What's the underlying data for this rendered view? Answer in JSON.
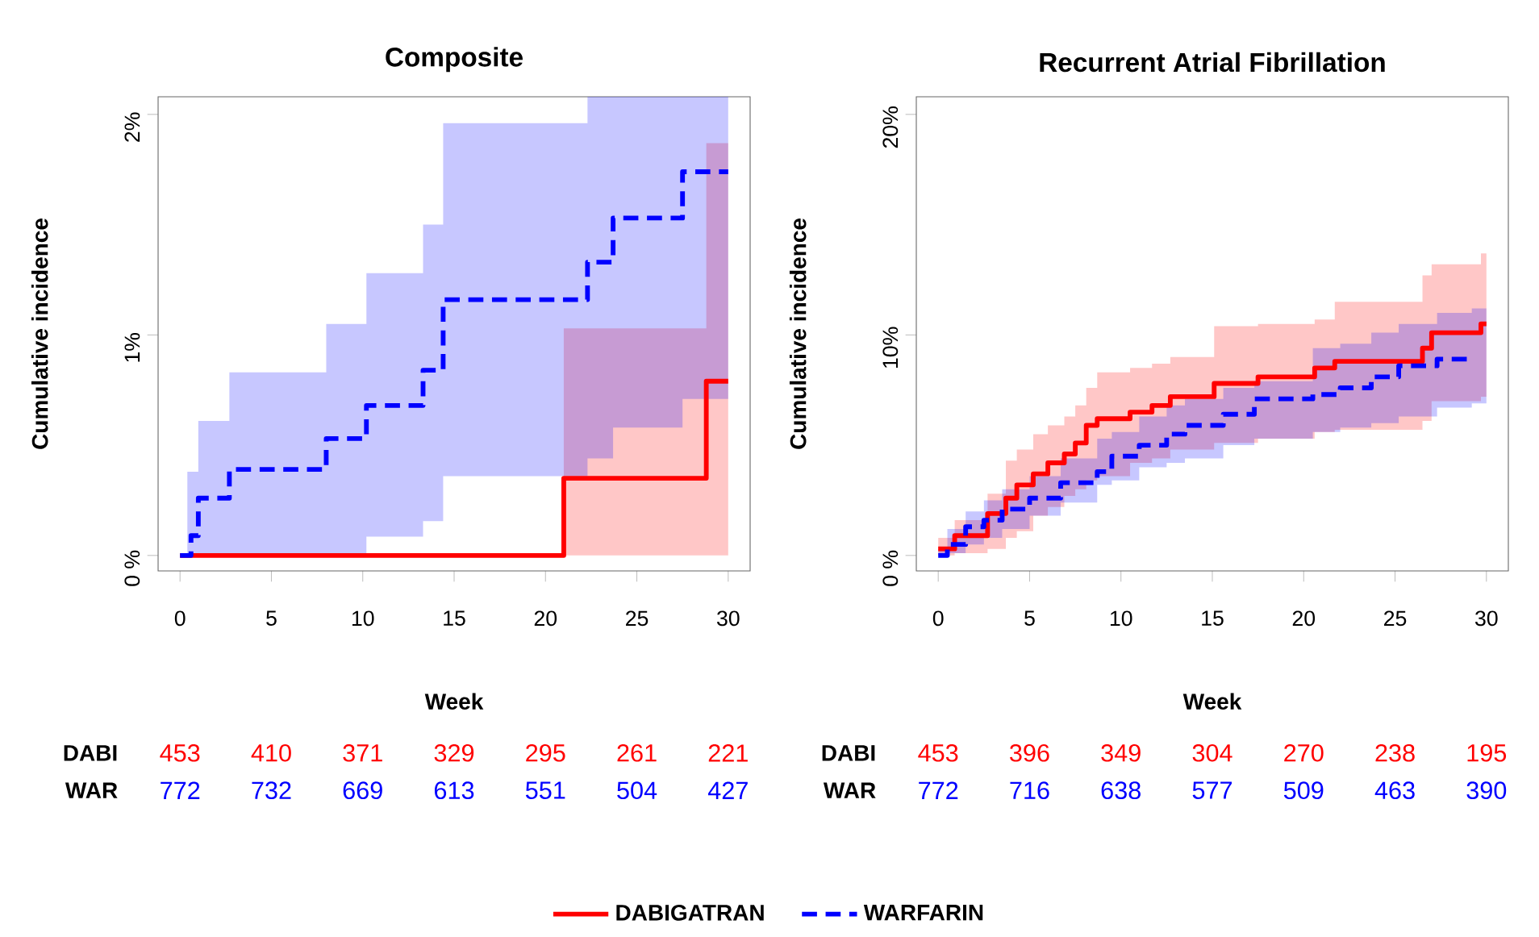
{
  "chart_data": [
    {
      "type": "step",
      "title": "Composite",
      "xlabel": "Week",
      "ylabel": "Cumulative incidence",
      "xlim": [
        -1.2,
        31.2
      ],
      "ylim": [
        -0.07,
        2.08
      ],
      "xticks": [
        0,
        5,
        10,
        15,
        20,
        25,
        30
      ],
      "yticks": [
        {
          "value": 0,
          "label": "0 %"
        },
        {
          "value": 1,
          "label": "1%"
        },
        {
          "value": 2,
          "label": "2%"
        }
      ],
      "legend": "bottom",
      "series": [
        {
          "name": "DABIGATRAN",
          "color": "#ff0000",
          "line_style": "solid",
          "x": [
            0,
            21.0,
            28.8,
            30
          ],
          "values": [
            0,
            0.35,
            0.79,
            0.79
          ],
          "upper": [
            0,
            1.03,
            1.87,
            1.87
          ],
          "lower": [
            0,
            0,
            0,
            0
          ]
        },
        {
          "name": "WARFARIN",
          "color": "#0000ff",
          "line_style": "dashed",
          "x": [
            0,
            0.4,
            0.6,
            1.0,
            2.7,
            8.0,
            10.2,
            13.3,
            14.4,
            22.3,
            23.7,
            27.5,
            30
          ],
          "values": [
            0,
            0,
            0.09,
            0.26,
            0.39,
            0.53,
            0.68,
            0.84,
            1.16,
            1.33,
            1.53,
            1.74,
            1.74
          ],
          "upper": [
            0,
            0.38,
            0.38,
            0.61,
            0.83,
            1.05,
            1.28,
            1.5,
            1.96,
            2.08,
            2.08,
            2.08,
            2.08
          ],
          "lower": [
            0,
            0,
            0,
            0,
            0,
            0,
            0.085,
            0.156,
            0.36,
            0.44,
            0.58,
            0.71,
            0.71
          ]
        }
      ],
      "annotations": [
        "DABI",
        "453",
        "410",
        "371",
        "329",
        "295",
        "261",
        "221",
        "WAR",
        "772",
        "732",
        "669",
        "613",
        "551",
        "504",
        "427"
      ]
    },
    {
      "type": "step",
      "title": "Recurrent Atrial Fibrillation",
      "xlabel": "Week",
      "ylabel": "Cumulative incidence",
      "xlim": [
        -1.2,
        31.2
      ],
      "ylim": [
        -0.7,
        20.8
      ],
      "xticks": [
        0,
        5,
        10,
        15,
        20,
        25,
        30
      ],
      "yticks": [
        {
          "value": 0,
          "label": "0 %"
        },
        {
          "value": 10,
          "label": "10%"
        },
        {
          "value": 20,
          "label": "20%"
        }
      ],
      "series": [
        {
          "color": "#ff0000",
          "line_style": "solid",
          "x": [
            0,
            0.9,
            2.7,
            3.7,
            4.3,
            5.2,
            6.0,
            6.9,
            7.5,
            8.1,
            8.7,
            10.5,
            11.7,
            12.7,
            15.1,
            17.5,
            20.6,
            21.7,
            26.5,
            27.0,
            29.7,
            30
          ],
          "values": [
            0.3,
            0.9,
            1.9,
            2.6,
            3.2,
            3.7,
            4.2,
            4.6,
            5.1,
            5.9,
            6.2,
            6.5,
            6.8,
            7.2,
            7.8,
            8.1,
            8.5,
            8.8,
            9.4,
            10.1,
            10.5,
            10.5
          ],
          "upper": [
            0.8,
            1.6,
            2.8,
            4.3,
            4.8,
            5.5,
            5.9,
            6.3,
            6.8,
            7.6,
            8.3,
            8.5,
            8.7,
            9.0,
            10.4,
            10.5,
            10.7,
            11.5,
            12.7,
            13.2,
            13.7,
            13.7
          ],
          "lower": [
            0,
            0.1,
            0.3,
            0.8,
            1.1,
            1.8,
            2.2,
            2.7,
            3.0,
            3.4,
            3.6,
            4.2,
            4.4,
            4.8,
            5.1,
            5.3,
            5.6,
            5.7,
            6.1,
            7.0,
            7.2,
            7.2
          ]
        },
        {
          "color": "#0000ff",
          "line_style": "dashed",
          "x": [
            0,
            0.5,
            1.5,
            2.5,
            3.5,
            5.0,
            6.7,
            8.7,
            9.5,
            11.0,
            12.5,
            13.5,
            15.6,
            17.3,
            20.5,
            22.0,
            23.7,
            25.2,
            27.3,
            29.2,
            30
          ],
          "values": [
            0,
            0.5,
            1.3,
            1.6,
            2.1,
            2.6,
            3.3,
            3.8,
            4.5,
            5.0,
            5.5,
            5.9,
            6.4,
            7.1,
            7.3,
            7.6,
            8.1,
            8.6,
            8.9,
            8.9,
            null
          ],
          "upper": [
            0.3,
            1.2,
            2.0,
            2.5,
            3.0,
            3.6,
            4.4,
            5.3,
            5.6,
            6.3,
            6.8,
            7.1,
            7.6,
            7.9,
            9.4,
            9.6,
            10.1,
            10.5,
            11.0,
            11.2,
            11.2
          ],
          "lower": [
            0,
            0.1,
            0.5,
            0.8,
            1.2,
            1.8,
            2.4,
            3.2,
            3.4,
            4.0,
            4.2,
            4.4,
            5.0,
            5.3,
            5.6,
            5.8,
            6.0,
            6.3,
            6.7,
            6.9,
            6.9
          ]
        }
      ],
      "annotations": [
        "DABI",
        "453",
        "396",
        "349",
        "304",
        "270",
        "238",
        "195",
        "WAR",
        "772",
        "716",
        "638",
        "577",
        "509",
        "463",
        "390"
      ]
    }
  ]
}
